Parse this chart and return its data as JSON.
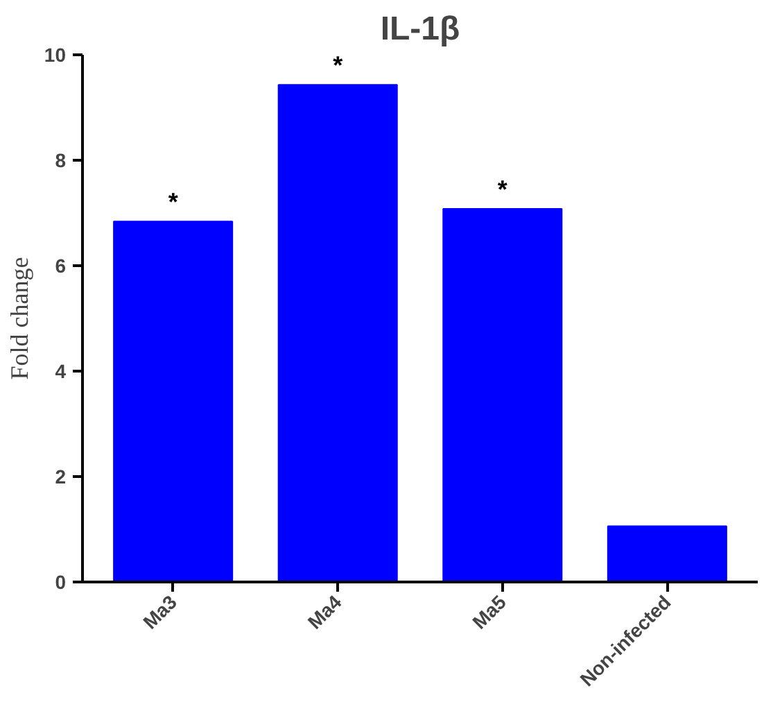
{
  "chart_data": {
    "type": "bar",
    "title": "IL-1β",
    "ylabel": "Fold change",
    "categories": [
      "Ma3",
      "Ma4",
      "Ma5",
      "Non-infected"
    ],
    "values": [
      6.84,
      9.43,
      7.08,
      1.06
    ],
    "color": "#0000ff",
    "ylim": [
      0,
      10
    ],
    "yticks": [
      0,
      2,
      4,
      6,
      8,
      10
    ],
    "grid": false,
    "annotations": [
      {
        "text": "*",
        "x": "Ma3",
        "y": 6.84
      },
      {
        "text": "*",
        "x": "Ma4",
        "y": 9.43
      },
      {
        "text": "*",
        "x": "Ma5",
        "y": 7.08
      }
    ]
  }
}
